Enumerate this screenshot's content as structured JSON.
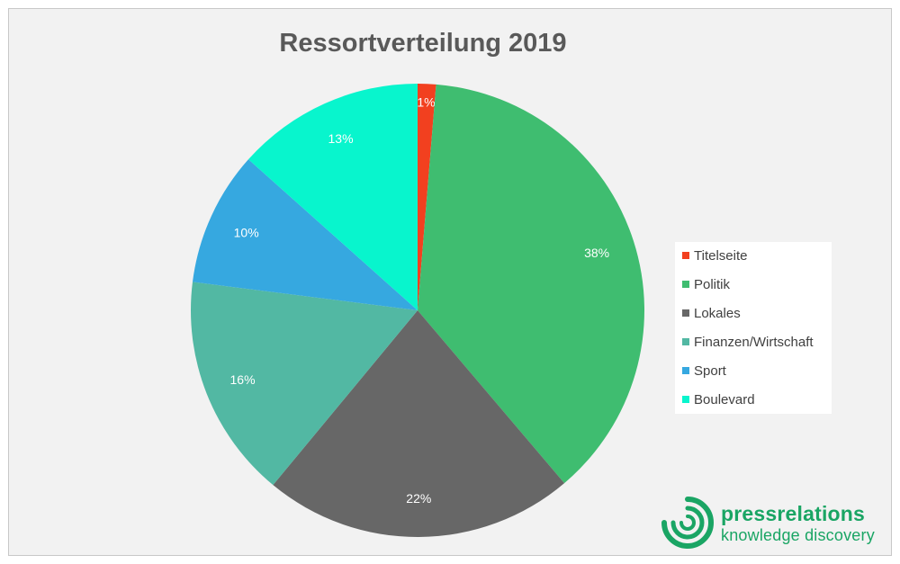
{
  "chart_data": {
    "type": "pie",
    "title": "Ressortverteilung 2019",
    "categories": [
      "Titelseite",
      "Politik",
      "Lokales",
      "Finanzen/Wirtschaft",
      "Sport",
      "Boulevard"
    ],
    "values": [
      1.3,
      37.5,
      22.2,
      16.0,
      9.6,
      13.4
    ],
    "labels": [
      "1%",
      "38%",
      "22%",
      "16%",
      "10%",
      "13%"
    ],
    "colors": [
      "#f2401f",
      "#3fbd70",
      "#676767",
      "#52b8a3",
      "#36a8e0",
      "#08f5cd"
    ],
    "legend_position": "right"
  },
  "logo": {
    "name": "pressrelations",
    "tagline": "knowledge discovery",
    "color": "#1aa564"
  }
}
